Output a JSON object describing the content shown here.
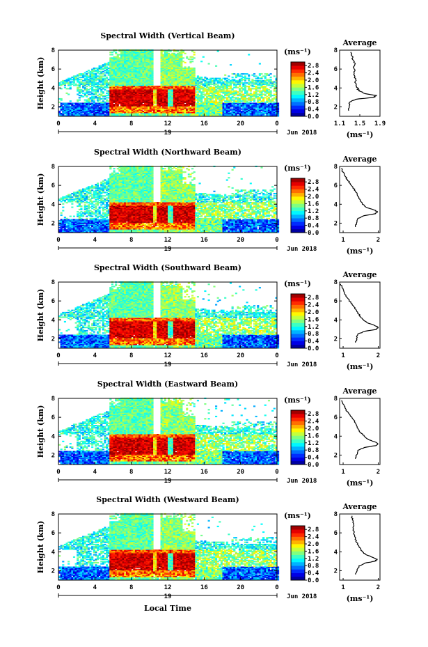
{
  "chart_data": {
    "type": "heatmap",
    "colormap": "jet",
    "color_stops": [
      "#00007f",
      "#0000ff",
      "#0080ff",
      "#00ffff",
      "#80ff80",
      "#ffff00",
      "#ff8000",
      "#ff0000",
      "#7f0000"
    ],
    "panels": [
      {
        "title": "Spectral Width (Vertical Beam)",
        "profile": {
          "title": "Average",
          "xticks": [
            "1.1",
            "1.5",
            "1.9"
          ],
          "xrange": [
            1.1,
            1.9
          ],
          "xlabel": "(ms⁻¹)"
        }
      },
      {
        "title": "Spectral Width (Northward Beam)",
        "profile": {
          "title": "Average",
          "xticks": [
            "1",
            "2"
          ],
          "xrange": [
            0.9,
            2.05
          ],
          "xlabel": "(ms⁻¹)"
        }
      },
      {
        "title": "Spectral Width (Southward Beam)",
        "profile": {
          "title": "Average",
          "xticks": [
            "1",
            "2"
          ],
          "xrange": [
            0.9,
            2.05
          ],
          "xlabel": "(ms⁻¹)"
        }
      },
      {
        "title": "Spectral Width (Eastward Beam)",
        "profile": {
          "title": "Average",
          "xticks": [
            "1",
            "2"
          ],
          "xrange": [
            0.9,
            2.05
          ],
          "xlabel": "(ms⁻¹)"
        }
      },
      {
        "title": "Spectral Width (Westward Beam)",
        "profile": {
          "title": "Average",
          "xticks": [
            "1",
            "2"
          ],
          "xrange": [
            0.9,
            2.05
          ],
          "xlabel": "(ms⁻¹)"
        }
      }
    ],
    "x": {
      "ticks": [
        "0",
        "4",
        "8",
        "12",
        "16",
        "20",
        "0"
      ],
      "range": [
        0,
        24
      ],
      "date_label": "19",
      "month_label": "Jun 2018"
    },
    "y": {
      "label": "Height (km)",
      "ticks": [
        "2",
        "4",
        "6",
        "8"
      ],
      "range": [
        1,
        8
      ]
    },
    "xlabel": "Local Time",
    "colorbar": {
      "unit": "(ms⁻¹)",
      "ticks": [
        "0.0",
        "0.4",
        "0.8",
        "1.2",
        "1.6",
        "2.0",
        "2.4",
        "2.8"
      ],
      "range": [
        0,
        3.0
      ]
    },
    "profile_heights": [
      1.6,
      2.0,
      2.5,
      2.8,
      3.0,
      3.2,
      3.4,
      3.7,
      4.0,
      4.3,
      4.6,
      5.0,
      5.4,
      5.8,
      6.2,
      6.6,
      7.0,
      7.4,
      7.8
    ],
    "profile_values": [
      [
        1.28,
        1.29,
        1.3,
        1.42,
        1.77,
        1.83,
        1.6,
        1.48,
        1.46,
        1.43,
        1.4,
        1.42,
        1.38,
        1.4,
        1.37,
        1.41,
        1.36,
        1.34,
        1.32
      ],
      [
        1.35,
        1.38,
        1.42,
        1.6,
        1.92,
        1.98,
        1.88,
        1.65,
        1.55,
        1.5,
        1.45,
        1.4,
        1.35,
        1.28,
        1.2,
        1.12,
        1.05,
        1.0,
        0.95
      ],
      [
        1.35,
        1.38,
        1.42,
        1.62,
        1.95,
        2.0,
        1.9,
        1.68,
        1.58,
        1.5,
        1.45,
        1.38,
        1.3,
        1.22,
        1.15,
        1.08,
        1.02,
        0.97,
        0.93
      ],
      [
        1.35,
        1.38,
        1.42,
        1.6,
        1.93,
        1.99,
        1.9,
        1.7,
        1.6,
        1.52,
        1.46,
        1.4,
        1.35,
        1.28,
        1.2,
        1.12,
        1.05,
        1.0,
        0.96
      ],
      [
        1.35,
        1.4,
        1.45,
        1.62,
        1.9,
        1.97,
        1.85,
        1.65,
        1.55,
        1.5,
        1.45,
        1.38,
        1.35,
        1.32,
        1.3,
        1.28,
        1.3,
        1.26,
        1.25
      ]
    ]
  }
}
